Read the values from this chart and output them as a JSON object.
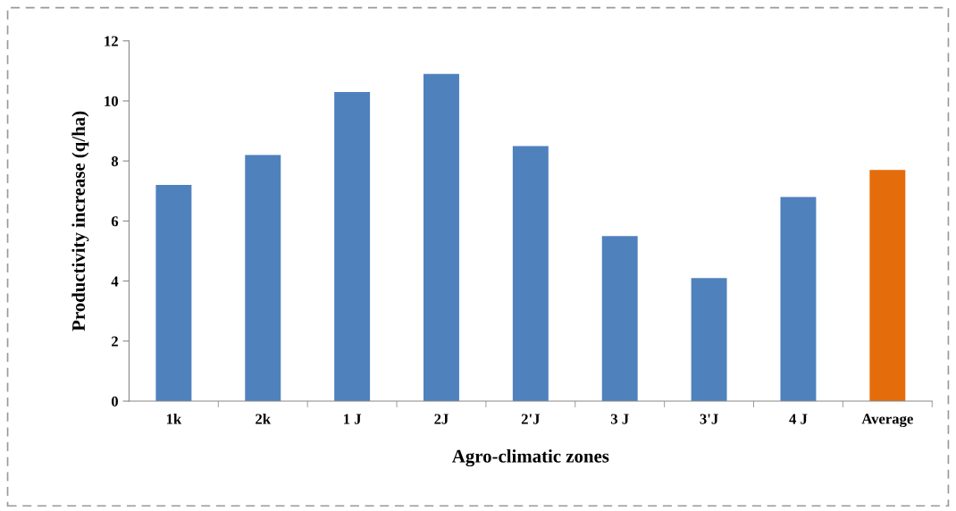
{
  "chart_data": {
    "type": "bar",
    "xlabel": "Agro-climatic zones",
    "ylabel": "Productivity increase (q/ha)",
    "categories": [
      "1k",
      "2k",
      "1 J",
      "2J",
      "2'J",
      "3 J",
      "3'J",
      "4 J",
      "Average"
    ],
    "values": [
      7.2,
      8.2,
      10.3,
      10.9,
      8.5,
      5.5,
      4.1,
      6.8,
      7.7
    ],
    "colors": [
      "#4f81bd",
      "#4f81bd",
      "#4f81bd",
      "#4f81bd",
      "#4f81bd",
      "#4f81bd",
      "#4f81bd",
      "#4f81bd",
      "#e46c0a"
    ],
    "ylim": [
      0,
      12
    ],
    "yticks": [
      0,
      2,
      4,
      6,
      8,
      10,
      12
    ],
    "grid": false,
    "legend": false
  }
}
